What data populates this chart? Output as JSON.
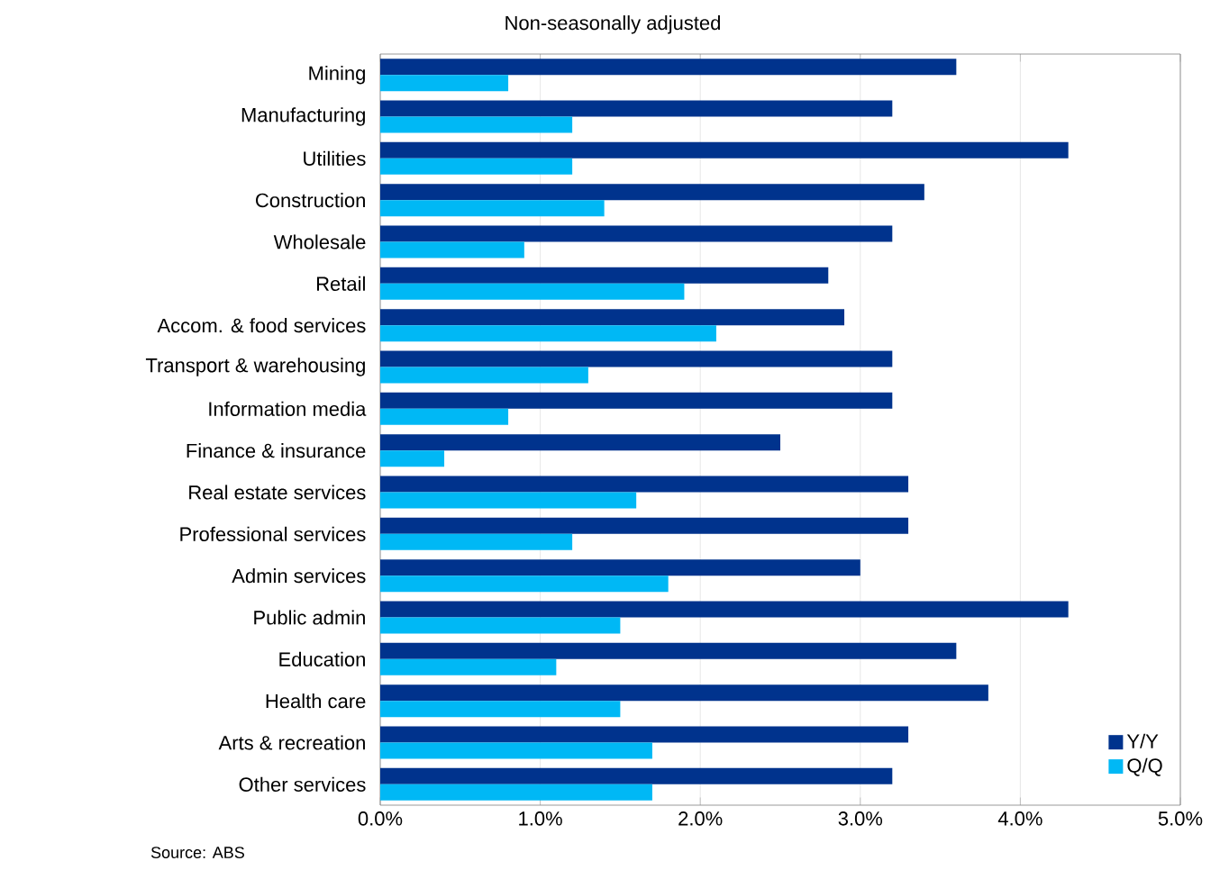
{
  "chart_data": {
    "type": "bar",
    "orientation": "horizontal",
    "subtitle": "Non-seasonally adjusted",
    "categories": [
      "Mining",
      "Manufacturing",
      "Utilities",
      "Construction",
      "Wholesale",
      "Retail",
      "Accom. & food services",
      "Transport & warehousing",
      "Information media",
      "Finance & insurance",
      "Real estate services",
      "Professional services",
      "Admin services",
      "Public admin",
      "Education",
      "Health care",
      "Arts & recreation",
      "Other services"
    ],
    "series": [
      {
        "name": "Y/Y",
        "color": "#00338d",
        "values": [
          3.6,
          3.2,
          4.3,
          3.4,
          3.2,
          2.8,
          2.9,
          3.2,
          3.2,
          2.5,
          3.3,
          3.3,
          3.0,
          4.3,
          3.6,
          3.8,
          3.3,
          3.2
        ]
      },
      {
        "name": "Q/Q",
        "color": "#00b8f5",
        "values": [
          0.8,
          1.2,
          1.2,
          1.4,
          0.9,
          1.9,
          2.1,
          1.3,
          0.8,
          0.4,
          1.6,
          1.2,
          1.8,
          1.5,
          1.1,
          1.5,
          1.7,
          1.7
        ]
      }
    ],
    "xlim": [
      0,
      5
    ],
    "xticks": [
      {
        "value": 0,
        "label": "0.0%"
      },
      {
        "value": 1,
        "label": "1.0%"
      },
      {
        "value": 2,
        "label": "2.0%"
      },
      {
        "value": 3,
        "label": "3.0%"
      },
      {
        "value": 4,
        "label": "4.0%"
      },
      {
        "value": 5,
        "label": "5.0%"
      }
    ],
    "grid": "x",
    "legend": "bottom right",
    "annotations": [
      "Source: ABS"
    ]
  }
}
